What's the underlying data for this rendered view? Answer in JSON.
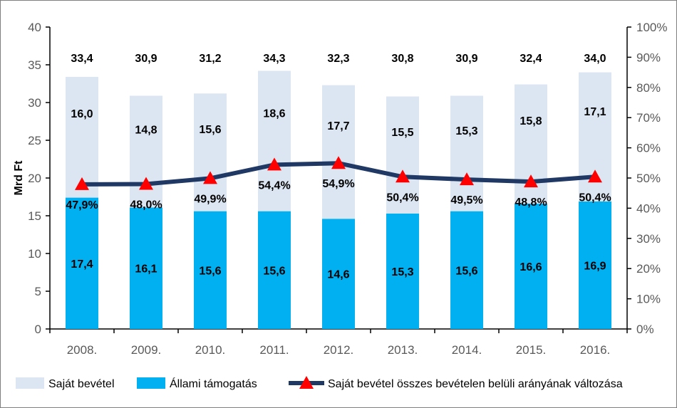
{
  "chart_data": {
    "type": "bar",
    "stacked": true,
    "categories": [
      "2008.",
      "2009.",
      "2010.",
      "2011.",
      "2012.",
      "2013.",
      "2014.",
      "2015.",
      "2016."
    ],
    "ylabel": "Mrd Ft",
    "ylim": [
      0,
      40
    ],
    "yticks": [
      "0",
      "5",
      "10",
      "15",
      "20",
      "25",
      "30",
      "35",
      "40"
    ],
    "y2lim": [
      0,
      100
    ],
    "y2ticks": [
      "0%",
      "10%",
      "20%",
      "30%",
      "40%",
      "50%",
      "60%",
      "70%",
      "80%",
      "90%",
      "100%"
    ],
    "totals": [
      33.4,
      30.9,
      31.2,
      34.3,
      32.3,
      30.8,
      30.9,
      32.4,
      34.0
    ],
    "total_labels": [
      "33,4",
      "30,9",
      "31,2",
      "34,3",
      "32,3",
      "30,8",
      "30,9",
      "32,4",
      "34,0"
    ],
    "series": [
      {
        "name": "Állami támogatás",
        "color": "#00b0f0",
        "values": [
          17.4,
          16.1,
          15.6,
          15.6,
          14.6,
          15.3,
          15.6,
          16.6,
          16.9
        ],
        "labels": [
          "17,4",
          "16,1",
          "15,6",
          "15,6",
          "14,6",
          "15,3",
          "15,6",
          "16,6",
          "16,9"
        ]
      },
      {
        "name": "Saját bevétel",
        "color": "#dce6f2",
        "values": [
          16.0,
          14.8,
          15.6,
          18.6,
          17.7,
          15.5,
          15.3,
          15.8,
          17.1
        ],
        "labels": [
          "16,0",
          "14,8",
          "15,6",
          "18,6",
          "17,7",
          "15,5",
          "15,3",
          "15,8",
          "17,1"
        ]
      },
      {
        "name": "Saját bevétel összes bevételen belüli arányának változása",
        "type": "line",
        "axis": "right",
        "line_color": "#1f3864",
        "marker_color": "#ff0000",
        "values": [
          47.9,
          48.0,
          49.9,
          54.4,
          54.9,
          50.4,
          49.5,
          48.8,
          50.4
        ],
        "labels": [
          "47,9%",
          "48,0%",
          "49,9%",
          "54,4%",
          "54,9%",
          "50,4%",
          "49,5%",
          "48,8%",
          "50,4%"
        ]
      }
    ],
    "legend": [
      "Saját bevétel",
      "Állami támogatás",
      "Saját bevétel összes bevételen belüli arányának változása"
    ],
    "legend_position": "bottom",
    "grid": false
  }
}
